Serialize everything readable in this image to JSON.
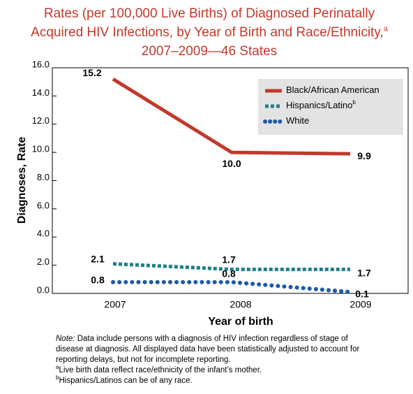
{
  "chart_data": {
    "type": "line",
    "title": "Rates (per 100,000 Live Births) of Diagnosed Perinatally Acquired HIV Infections, by Year of Birth and Race/Ethnicity,",
    "title_superscript": "a",
    "title_end": " 2007–2009—46 States",
    "x_label": "Year of birth",
    "y_label": "Diagnoses, Rate",
    "categories": [
      "2007",
      "2008",
      "2009"
    ],
    "series": [
      {
        "name": "Black/African American",
        "color": "#c1392b",
        "style": "solid",
        "values": [
          15.2,
          10.0,
          9.9
        ],
        "value_labels": [
          "15.2",
          "10.0",
          "9.9"
        ]
      },
      {
        "name": "Hispanics/Latino",
        "name_superscript": "b",
        "color": "#1f7f86",
        "style": "dashed",
        "values": [
          2.1,
          1.7,
          1.7
        ],
        "value_labels": [
          "2.1",
          "1.7",
          "1.7"
        ]
      },
      {
        "name": "White",
        "color": "#1f5aa6",
        "style": "dotted",
        "values": [
          0.8,
          0.8,
          0.1
        ],
        "value_labels": [
          "0.8",
          "0.8",
          "0.1"
        ]
      }
    ],
    "ylim": [
      0,
      16
    ],
    "yticks": [
      {
        "value": 0,
        "label": "0.0"
      },
      {
        "value": 2,
        "label": "2.0"
      },
      {
        "value": 4,
        "label": "4.0"
      },
      {
        "value": 6,
        "label": "6.0"
      },
      {
        "value": 8,
        "label": "8.0"
      },
      {
        "value": 10,
        "label": "10.0"
      },
      {
        "value": 12,
        "label": "12.0"
      },
      {
        "value": 14,
        "label": "14.0"
      },
      {
        "value": 16,
        "label": "16.0"
      }
    ],
    "legend_position": "upper right",
    "notes": {
      "note_label": "Note:",
      "note_text": " Data include persons with a diagnosis of HIV infection regardless of stage of disease at diagnosis. All displayed data have been statistically adjusted to account for reporting delays, but not for incomplete reporting.",
      "footnote_a_mark": "a",
      "footnote_a": "Live birth data reflect race/ethnicity of the infant’s mother.",
      "footnote_b_mark": "b",
      "footnote_b": "Hispanics/Latinos can be of any race."
    }
  }
}
